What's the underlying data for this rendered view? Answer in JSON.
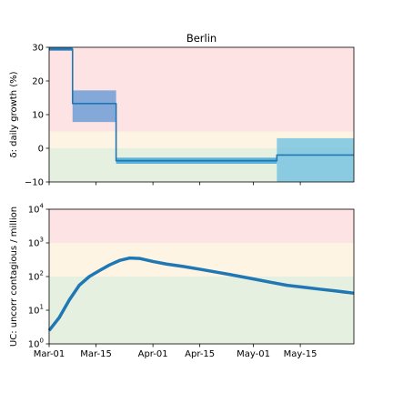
{
  "chart_data": [
    {
      "type": "line",
      "title": "Berlin",
      "ylabel": "δ: daily growth (%)",
      "xlabel": "",
      "ylim": [
        -10,
        30
      ],
      "yticks": [
        -10,
        0,
        10,
        20,
        30
      ],
      "ytick_labels": [
        "−10",
        "0",
        "10",
        "20",
        "30"
      ],
      "grid": false,
      "bands": [
        {
          "from": 5,
          "to": 30,
          "color": "#fde3e3"
        },
        {
          "from": 0,
          "to": 5,
          "color": "#fdf4e3"
        },
        {
          "from": -10,
          "to": 0,
          "color": "#e6f0e0"
        }
      ],
      "series": [
        {
          "type": "step",
          "color": "#1f77b4",
          "points": [
            {
              "x": "2020-03-01",
              "y": 29.5
            },
            {
              "x": "2020-03-08",
              "y": 29.5
            },
            {
              "x": "2020-03-08",
              "y": 13.3
            },
            {
              "x": "2020-03-21",
              "y": 13.3
            },
            {
              "x": "2020-03-21",
              "y": -3.7
            },
            {
              "x": "2020-05-08",
              "y": -3.7
            },
            {
              "x": "2020-05-08",
              "y": -2.0
            },
            {
              "x": "2020-05-31",
              "y": -2.0
            }
          ]
        }
      ],
      "intervals": [
        {
          "x_start": "2020-03-01",
          "x_end": "2020-03-08",
          "low": 29.0,
          "high": 30.0,
          "color": "#1f77b4"
        },
        {
          "x_start": "2020-03-08",
          "x_end": "2020-03-21",
          "low": 7.8,
          "high": 17.2,
          "color": "#6f9fd6"
        },
        {
          "x_start": "2020-03-21",
          "x_end": "2020-05-08",
          "low": -4.6,
          "high": -2.8,
          "color": "#3fa7d6"
        },
        {
          "x_start": "2020-05-08",
          "x_end": "2020-05-31",
          "low": -10,
          "high": 3.0,
          "color": "#7ac4e2"
        }
      ]
    },
    {
      "type": "line",
      "title": "",
      "ylabel": "UC: uncorr contagious / million",
      "xlabel": "",
      "yscale": "log",
      "ylim": [
        1,
        10000
      ],
      "yticks": [
        1,
        10,
        100,
        1000,
        10000
      ],
      "ytick_labels": [
        [
          "10",
          "0"
        ],
        [
          "10",
          "1"
        ],
        [
          "10",
          "2"
        ],
        [
          "10",
          "3"
        ],
        [
          "10",
          "4"
        ]
      ],
      "grid": false,
      "x_ticks": [
        "2020-03-01",
        "2020-03-15",
        "2020-04-01",
        "2020-04-15",
        "2020-05-01",
        "2020-05-15"
      ],
      "x_tick_labels": [
        "Mar-01",
        "Mar-15",
        "Apr-01",
        "Apr-15",
        "May-01",
        "May-15"
      ],
      "bands": [
        {
          "from": 1000,
          "to": 10000,
          "color": "#fde3e3"
        },
        {
          "from": 100,
          "to": 1000,
          "color": "#fdf4e3"
        },
        {
          "from": 1,
          "to": 100,
          "color": "#e6f0e0"
        }
      ],
      "series": [
        {
          "type": "line",
          "color": "#1f77b4",
          "points": [
            {
              "x": "2020-03-01",
              "y": 2.5
            },
            {
              "x": "2020-03-04",
              "y": 6
            },
            {
              "x": "2020-03-07",
              "y": 20
            },
            {
              "x": "2020-03-10",
              "y": 55
            },
            {
              "x": "2020-03-13",
              "y": 100
            },
            {
              "x": "2020-03-16",
              "y": 150
            },
            {
              "x": "2020-03-19",
              "y": 220
            },
            {
              "x": "2020-03-22",
              "y": 300
            },
            {
              "x": "2020-03-25",
              "y": 355
            },
            {
              "x": "2020-03-28",
              "y": 345
            },
            {
              "x": "2020-04-01",
              "y": 280
            },
            {
              "x": "2020-04-05",
              "y": 235
            },
            {
              "x": "2020-04-10",
              "y": 200
            },
            {
              "x": "2020-04-15",
              "y": 165
            },
            {
              "x": "2020-04-20",
              "y": 135
            },
            {
              "x": "2020-04-25",
              "y": 110
            },
            {
              "x": "2020-05-01",
              "y": 85
            },
            {
              "x": "2020-05-06",
              "y": 68
            },
            {
              "x": "2020-05-11",
              "y": 55
            },
            {
              "x": "2020-05-16",
              "y": 48
            },
            {
              "x": "2020-05-21",
              "y": 42
            },
            {
              "x": "2020-05-26",
              "y": 37
            },
            {
              "x": "2020-05-31",
              "y": 32
            }
          ]
        }
      ]
    }
  ],
  "x_domain": [
    "2020-03-01",
    "2020-05-31"
  ]
}
